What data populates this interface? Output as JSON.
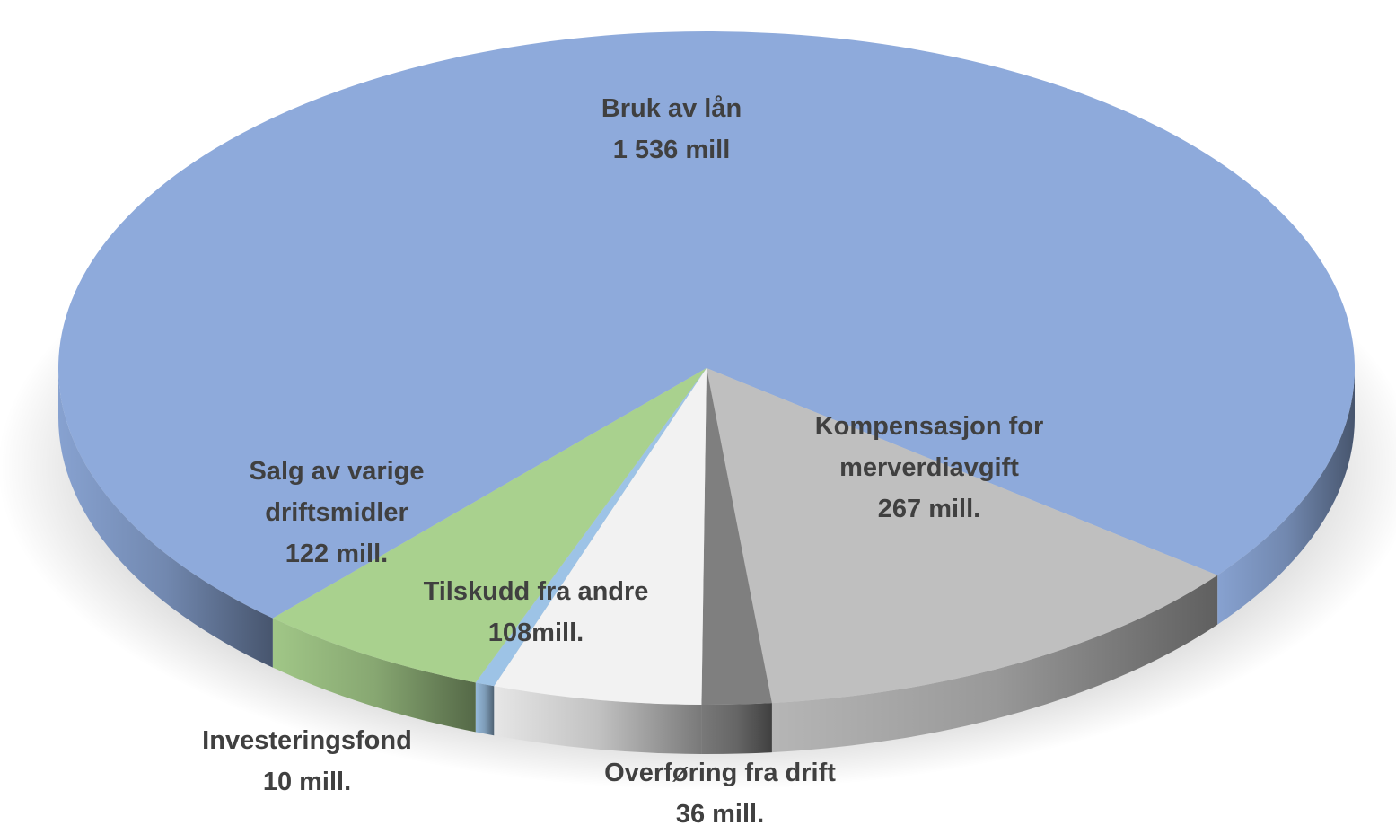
{
  "chart_data": {
    "type": "pie",
    "categories": [
      "Bruk av lån",
      "Kompensasjon for merverdiavgift",
      "Overføring fra drift",
      "Tilskudd fra andre",
      "Investeringsfond",
      "Salg av varige driftsmidler"
    ],
    "values": [
      1536,
      267,
      36,
      108,
      10,
      122
    ],
    "value_labels": [
      "1 536 mill",
      "267 mill.",
      "36 mill.",
      "108mill.",
      "10 mill.",
      "122 mill."
    ],
    "colors": [
      "#8eaadb",
      "#bfbfbf",
      "#7f7f7f",
      "#f2f2f2",
      "#9dc3e6",
      "#a9d18e"
    ]
  }
}
